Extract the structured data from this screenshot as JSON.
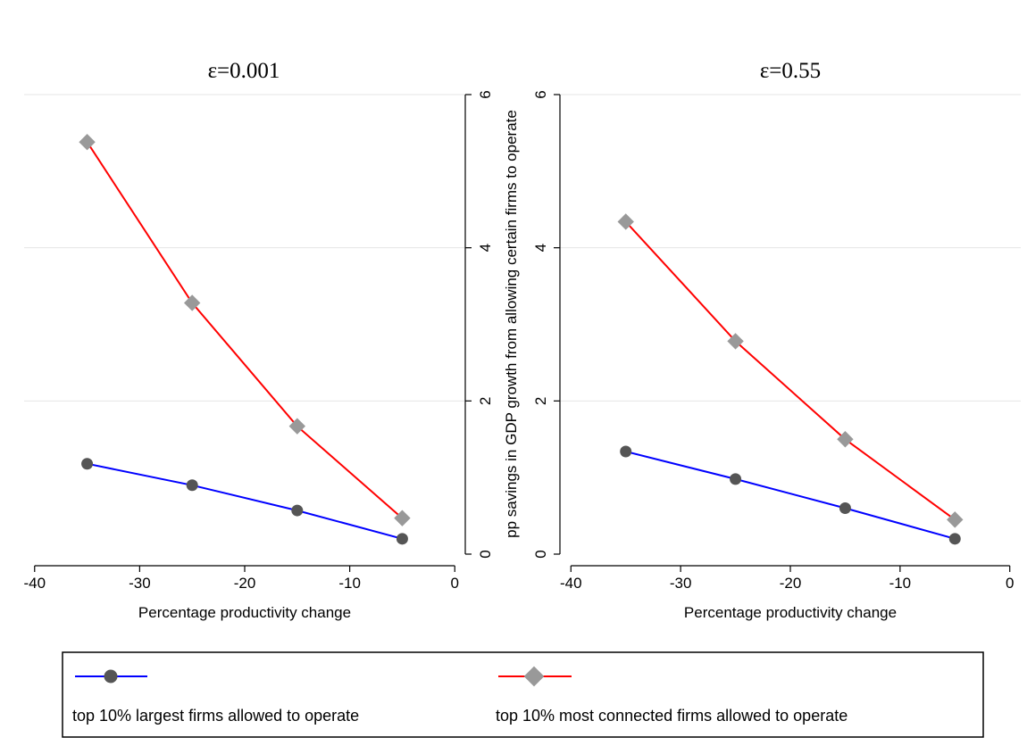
{
  "chart_data": [
    {
      "type": "line",
      "title": "ε=0.001",
      "xlabel": "Percentage productivity change",
      "ylabel": "",
      "xlim": [
        -41,
        1
      ],
      "ylim": [
        0,
        6
      ],
      "xticks": [
        -40,
        -30,
        -20,
        -10,
        0
      ],
      "yticks": [
        0,
        2,
        4,
        6
      ],
      "x": [
        -35,
        -25,
        -15,
        -5
      ],
      "series": [
        {
          "name": "top 10% largest firms allowed to operate",
          "values": [
            1.18,
            0.9,
            0.57,
            0.2
          ]
        },
        {
          "name": "top 10% most connected firms allowed to operate",
          "values": [
            5.38,
            3.28,
            1.67,
            0.47
          ]
        }
      ]
    },
    {
      "type": "line",
      "title": "ε=0.55",
      "xlabel": "Percentage productivity change",
      "ylabel": "pp savings in GDP growth from allowing certain firms to operate",
      "xlim": [
        -41,
        1
      ],
      "ylim": [
        0,
        6
      ],
      "xticks": [
        -40,
        -30,
        -20,
        -10,
        0
      ],
      "yticks": [
        0,
        2,
        4,
        6
      ],
      "x": [
        -35,
        -25,
        -15,
        -5
      ],
      "series": [
        {
          "name": "top 10% largest firms allowed to operate",
          "values": [
            1.34,
            0.98,
            0.6,
            0.2
          ]
        },
        {
          "name": "top 10% most connected firms allowed to operate",
          "values": [
            4.34,
            2.78,
            1.5,
            0.45
          ]
        }
      ]
    }
  ],
  "legend": {
    "items": [
      {
        "label": "top 10% largest firms allowed to operate"
      },
      {
        "label": "top 10% most connected firms allowed to operate"
      }
    ]
  },
  "colors": {
    "series_line": [
      "#0000ff",
      "#ff0000"
    ],
    "series_marker": [
      "#555555",
      "#999999"
    ],
    "grid": "#e6e6e6",
    "axis": "#000000"
  },
  "markers": [
    "circle",
    "diamond"
  ]
}
